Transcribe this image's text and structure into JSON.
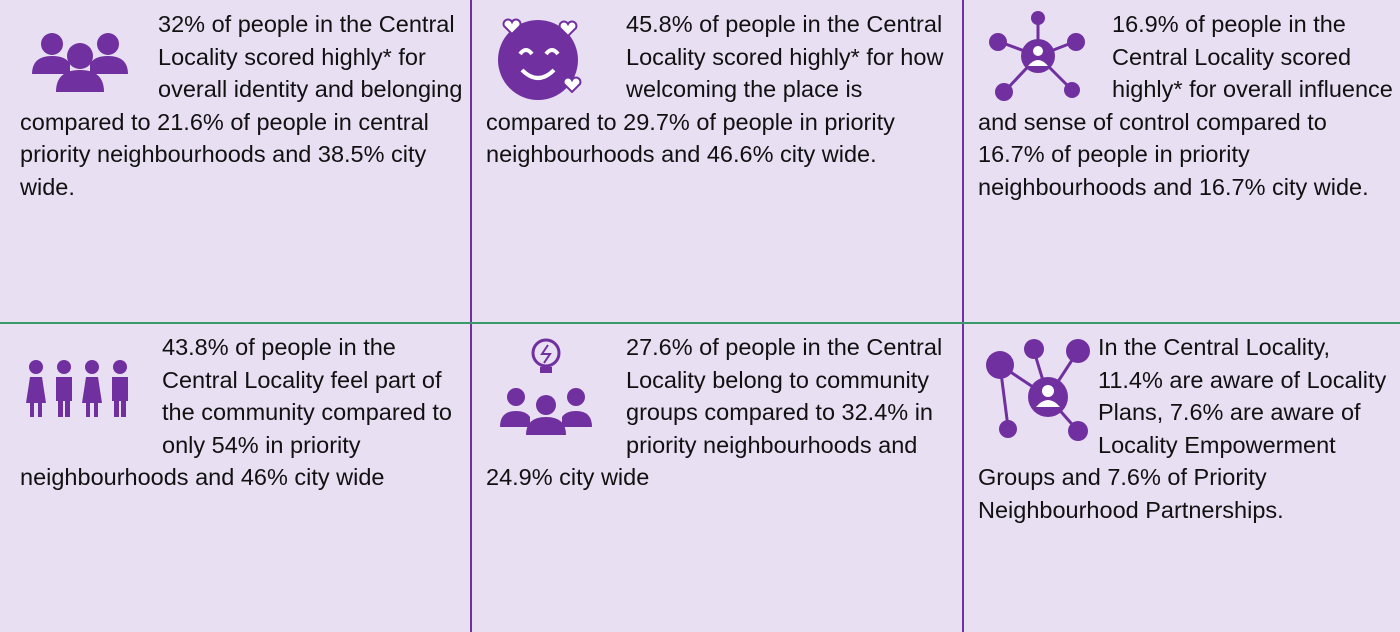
{
  "cells": [
    {
      "text": "32% of people in the Central Locality scored highly* for overall identity and belonging compared to 21.6% of people in central priority neighbourhoods and 38.5% city wide."
    },
    {
      "text": "45.8% of people in the Central Locality scored highly* for how welcoming the place is compared to 29.7% of people in priority neighbourhoods and 46.6% city wide."
    },
    {
      "text": "16.9% of people in the Central Locality scored highly* for overall influence and sense of control compared to 16.7% of people in priority neighbourhoods and 16.7% city wide."
    },
    {
      "text": "43.8% of people in the Central Locality feel part of the community compared to only 54% in priority neighbourhoods and 46% city wide"
    },
    {
      "text": "27.6% of people in the Central Locality belong to community groups compared to 32.4% in priority neighbourhoods and 24.9% city wide"
    },
    {
      "text": "In the Central Locality, 11.4% are aware of Locality Plans, 7.6% are aware of Locality Empowerment Groups and 7.6% of Priority Neighbourhood Partnerships."
    }
  ]
}
